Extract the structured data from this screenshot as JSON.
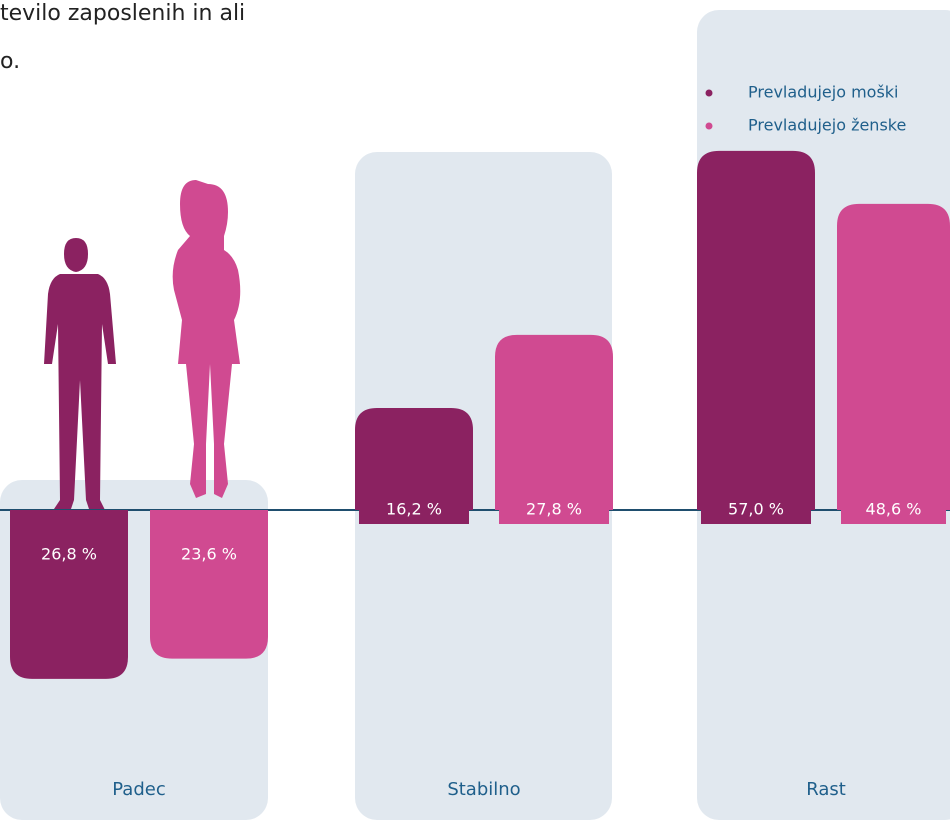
{
  "chart_data": {
    "type": "bar",
    "title_lines": [
      "tevilo zaposlenih in ali",
      "o."
    ],
    "categories": [
      "Padec",
      "Stabilno",
      "Rast"
    ],
    "directions": [
      "down",
      "up",
      "up"
    ],
    "series": [
      {
        "name": "Prevladujejo moški",
        "color": "#8b2261",
        "values": [
          26.8,
          16.2,
          57.0
        ],
        "value_labels": [
          "26,8 %",
          "16,2 %",
          "57,0 %"
        ]
      },
      {
        "name": "Prevladujejo ženske",
        "color": "#d04a91",
        "values": [
          23.6,
          27.8,
          48.6
        ],
        "value_labels": [
          "23,6 %",
          "27,8 %",
          "48,6 %"
        ]
      }
    ],
    "legend": "top-right"
  }
}
